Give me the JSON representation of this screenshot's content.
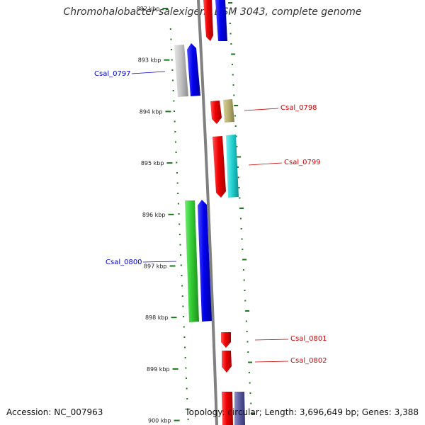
{
  "title": "Chromohalobacter salexigens DSM 3043, complete genome",
  "accession": "Accession: NC_007963",
  "summary": "Topology: circular; Length: 3,696,649 bp; Genes: 3,388",
  "kbp_ticks": [
    {
      "label": "892 kbp",
      "value": 892
    },
    {
      "label": "893 kbp",
      "value": 893
    },
    {
      "label": "894 kbp",
      "value": 894
    },
    {
      "label": "895 kbp",
      "value": 895
    },
    {
      "label": "896 kbp",
      "value": 896
    },
    {
      "label": "897 kbp",
      "value": 897
    },
    {
      "label": "898 kbp",
      "value": 898
    },
    {
      "label": "899 kbp",
      "value": 899
    },
    {
      "label": "900 kbp",
      "value": 900
    }
  ],
  "gene_labels": [
    {
      "label": "Csal_0797",
      "strand": "reverse",
      "color": "#0000cc"
    },
    {
      "label": "Csal_0798",
      "strand": "forward",
      "color": "#cc0000"
    },
    {
      "label": "Csal_0799",
      "strand": "forward",
      "color": "#cc0000"
    },
    {
      "label": "Csal_0800",
      "strand": "reverse",
      "color": "#0000cc"
    },
    {
      "label": "Csal_0801",
      "strand": "forward",
      "color": "#cc0000"
    },
    {
      "label": "Csal_0802",
      "strand": "forward",
      "color": "#cc0000"
    }
  ],
  "colors": {
    "red": "#ee0000",
    "blue": "#0000ee",
    "green": "#33cc33",
    "silver": "#b8b8b8",
    "olive": "#b5ad70",
    "cyan": "#20d0d0",
    "slate": "#5a5aa0",
    "backbone": "#808080",
    "ticks": "#1a7a1a"
  }
}
